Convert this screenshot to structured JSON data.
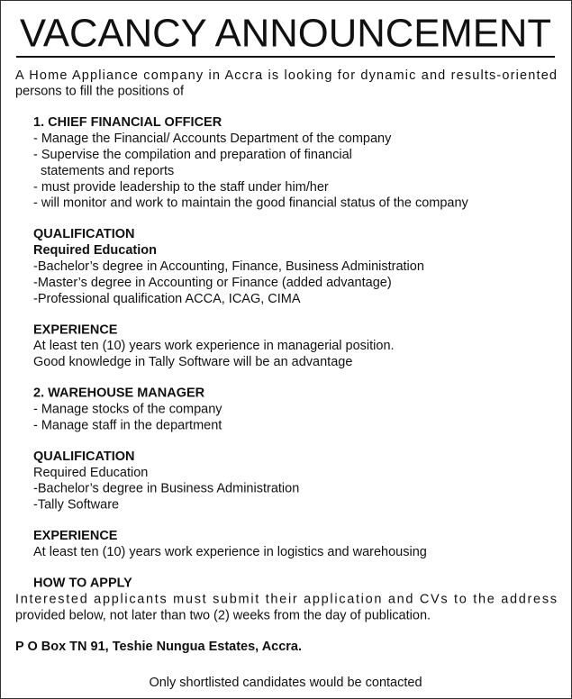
{
  "title": "VACANCY ANNOUNCEMENT",
  "intro": [
    "A Home Appliance company in Accra is looking for dynamic and results-oriented",
    "persons to fill the positions of"
  ],
  "positions": [
    {
      "heading": "1. CHIEF FINANCIAL OFFICER",
      "duties": [
        "- Manage the Financial/ Accounts Department of the company",
        [
          "- Supervise the compilation and preparation of financial",
          "statements and reports"
        ],
        "- must provide leadership to the staff under him/her",
        "- will monitor and work to maintain the good financial status of the company"
      ],
      "qualification": {
        "heading": "QUALIFICATION",
        "subheading": "Required Education",
        "items": [
          "-Bachelor’s degree in Accounting, Finance, Business Administration",
          "-Master’s degree in Accounting or Finance (added advantage)",
          "-Professional qualification ACCA, ICAG, CIMA"
        ]
      },
      "experience": {
        "heading": "EXPERIENCE",
        "lines": [
          "At least ten (10) years work experience in managerial position.",
          "Good knowledge in Tally Software will be an advantage"
        ]
      }
    },
    {
      "heading": "2. WAREHOUSE MANAGER",
      "duties": [
        "- Manage stocks of the company",
        "- Manage staff in the department"
      ],
      "qualification": {
        "heading": "QUALIFICATION",
        "subheading": "Required Education",
        "items": [
          "-Bachelor’s degree in Business Administration",
          "-Tally Software"
        ]
      },
      "experience": {
        "heading": "EXPERIENCE",
        "lines": [
          "At least ten (10) years work experience in logistics and warehousing"
        ]
      }
    }
  ],
  "how_to_apply": {
    "heading": "HOW TO APPLY",
    "lines": [
      "Interested applicants must submit their application and CVs to the address",
      "provided below, not later than two (2) weeks from the day of publication."
    ]
  },
  "address": "P O Box TN 91, Teshie Nungua Estates, Accra.",
  "note": "Only shortlisted candidates would be contacted"
}
